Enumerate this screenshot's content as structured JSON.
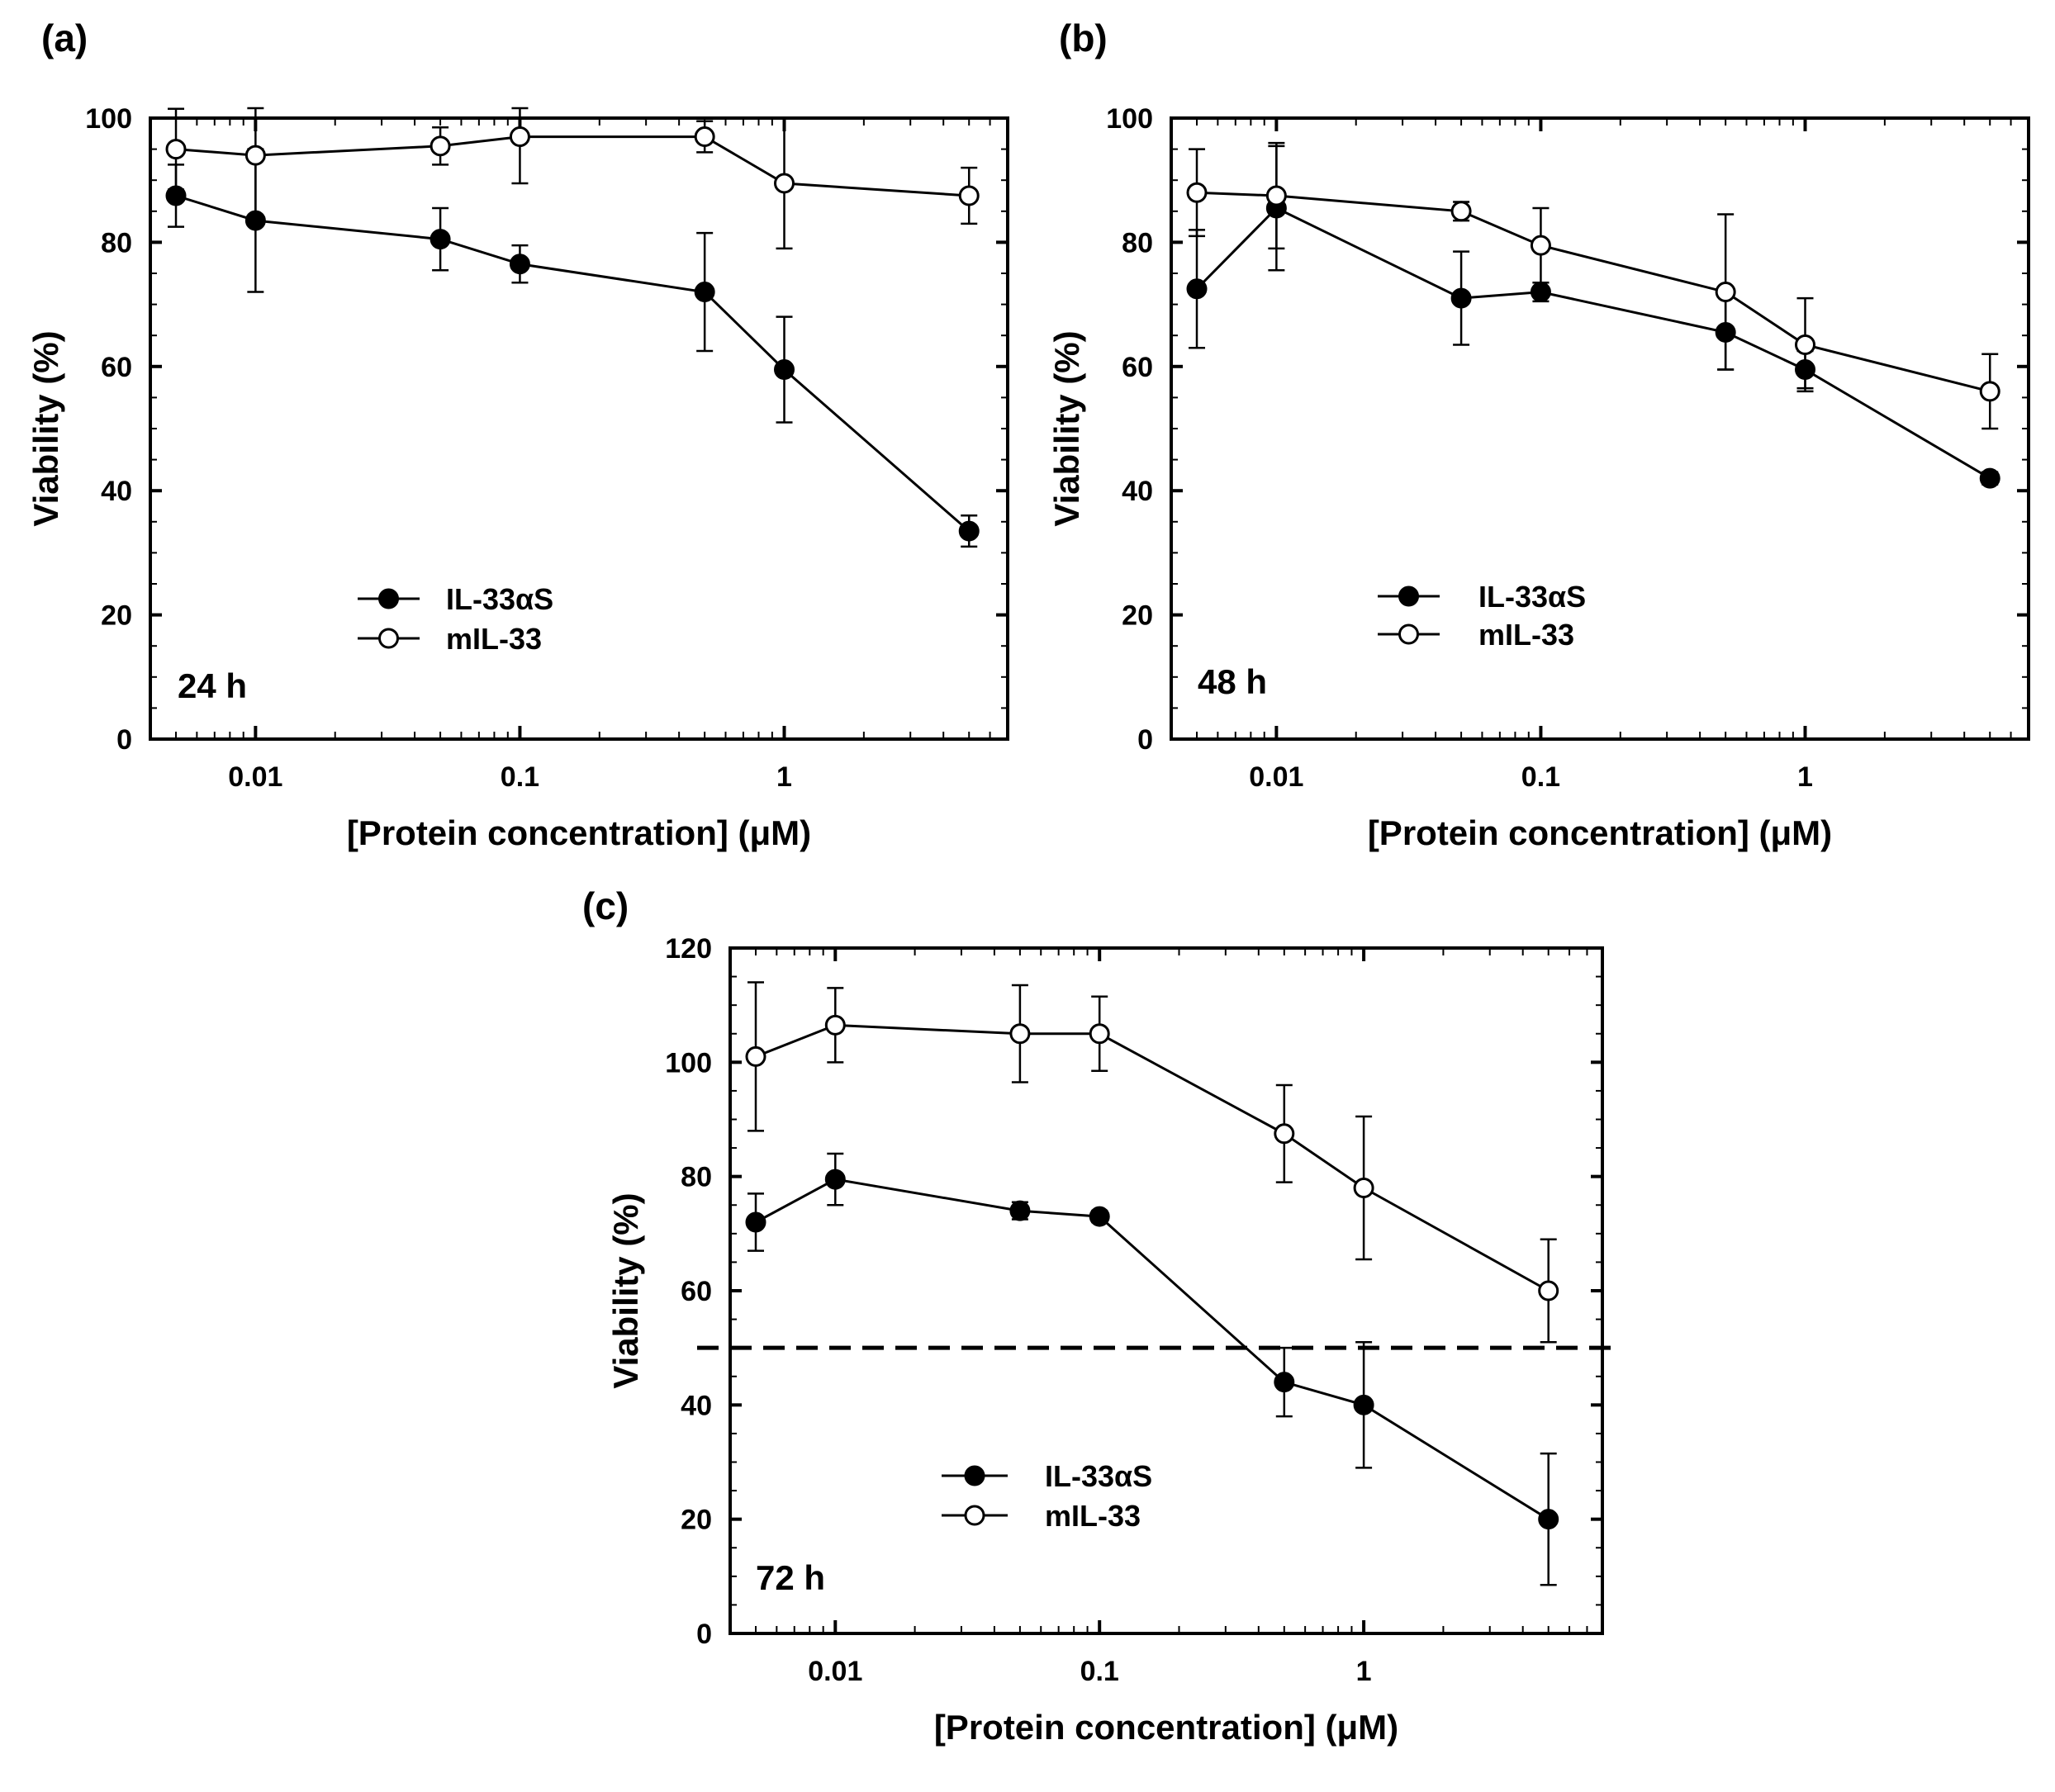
{
  "chart_data": [
    {
      "type": "line",
      "panel_label": "(a)",
      "time_label": "24 h",
      "xlabel": "[Protein concentration]  (μM)",
      "ylabel": "Viability (%)",
      "x_scale": "log",
      "xlim": [
        0.004,
        7
      ],
      "ylim": [
        0,
        100
      ],
      "y_ticks": [
        0,
        20,
        40,
        60,
        80,
        100
      ],
      "x_ticks": [
        0.01,
        0.1,
        1
      ],
      "x_tick_labels": [
        "0.01",
        "0.1",
        "1"
      ],
      "legend_placement": "lower-center",
      "series": [
        {
          "name": "IL-33αS",
          "marker": "filled",
          "x": [
            0.005,
            0.01,
            0.05,
            0.1,
            0.5,
            1,
            5
          ],
          "y": [
            87.5,
            83.5,
            80.5,
            76.5,
            72,
            59.5,
            33.5
          ],
          "err": [
            5,
            11.5,
            5,
            3,
            9.5,
            8.5,
            2.5
          ]
        },
        {
          "name": "mIL-33",
          "marker": "open",
          "x": [
            0.005,
            0.01,
            0.05,
            0.1,
            0.5,
            1,
            5
          ],
          "y": [
            95,
            94,
            95.5,
            97,
            97,
            89.5,
            87.5
          ],
          "err": [
            6.5,
            10,
            3,
            7.5,
            2.5,
            10.5,
            4.5
          ]
        }
      ]
    },
    {
      "type": "line",
      "panel_label": "(b)",
      "time_label": "48 h",
      "xlabel": "[Protein concentration]  (μM)",
      "ylabel": "Viability (%)",
      "x_scale": "log",
      "xlim": [
        0.004,
        7
      ],
      "ylim": [
        0,
        100
      ],
      "y_ticks": [
        0,
        20,
        40,
        60,
        80,
        100
      ],
      "x_ticks": [
        0.01,
        0.1,
        1
      ],
      "x_tick_labels": [
        "0.01",
        "0.1",
        "1"
      ],
      "legend_placement": "lower-center",
      "series": [
        {
          "name": "IL-33αS",
          "marker": "filled",
          "x": [
            0.005,
            0.01,
            0.05,
            0.1,
            0.5,
            1,
            5
          ],
          "y": [
            72.5,
            85.5,
            71,
            72,
            65.5,
            59.5,
            42
          ],
          "err": [
            9.5,
            10,
            7.5,
            1.5,
            6,
            3,
            1
          ]
        },
        {
          "name": "mIL-33",
          "marker": "open",
          "x": [
            0.005,
            0.01,
            0.05,
            0.1,
            0.5,
            1,
            5
          ],
          "y": [
            88,
            87.5,
            85,
            79.5,
            72,
            63.5,
            56
          ],
          "err": [
            7,
            8.5,
            1.5,
            6,
            12.5,
            7.5,
            6
          ]
        }
      ]
    },
    {
      "type": "line",
      "panel_label": "(c)",
      "time_label": "72 h",
      "xlabel": "[Protein concentration]  (μM)",
      "ylabel": "Viability (%)",
      "x_scale": "log",
      "xlim": [
        0.004,
        8
      ],
      "ylim": [
        0,
        120
      ],
      "y_ticks": [
        0,
        20,
        40,
        60,
        80,
        100,
        120
      ],
      "x_ticks": [
        0.01,
        0.1,
        1
      ],
      "x_tick_labels": [
        "0.01",
        "0.1",
        "1"
      ],
      "reference_line": {
        "y": 50,
        "style": "dashed"
      },
      "legend_placement": "lower-center",
      "series": [
        {
          "name": "IL-33αS",
          "marker": "filled",
          "x": [
            0.005,
            0.01,
            0.05,
            0.1,
            0.5,
            1,
            5
          ],
          "y": [
            72,
            79.5,
            74,
            73,
            44,
            40,
            20
          ],
          "err": [
            5,
            4.5,
            1.5,
            1,
            6,
            11,
            11.5
          ]
        },
        {
          "name": "mIL-33",
          "marker": "open",
          "x": [
            0.005,
            0.01,
            0.05,
            0.1,
            0.5,
            1,
            5
          ],
          "y": [
            101,
            106.5,
            105,
            105,
            87.5,
            78,
            60
          ],
          "err": [
            13,
            6.5,
            8.5,
            6.5,
            8.5,
            12.5,
            9
          ]
        }
      ]
    }
  ]
}
